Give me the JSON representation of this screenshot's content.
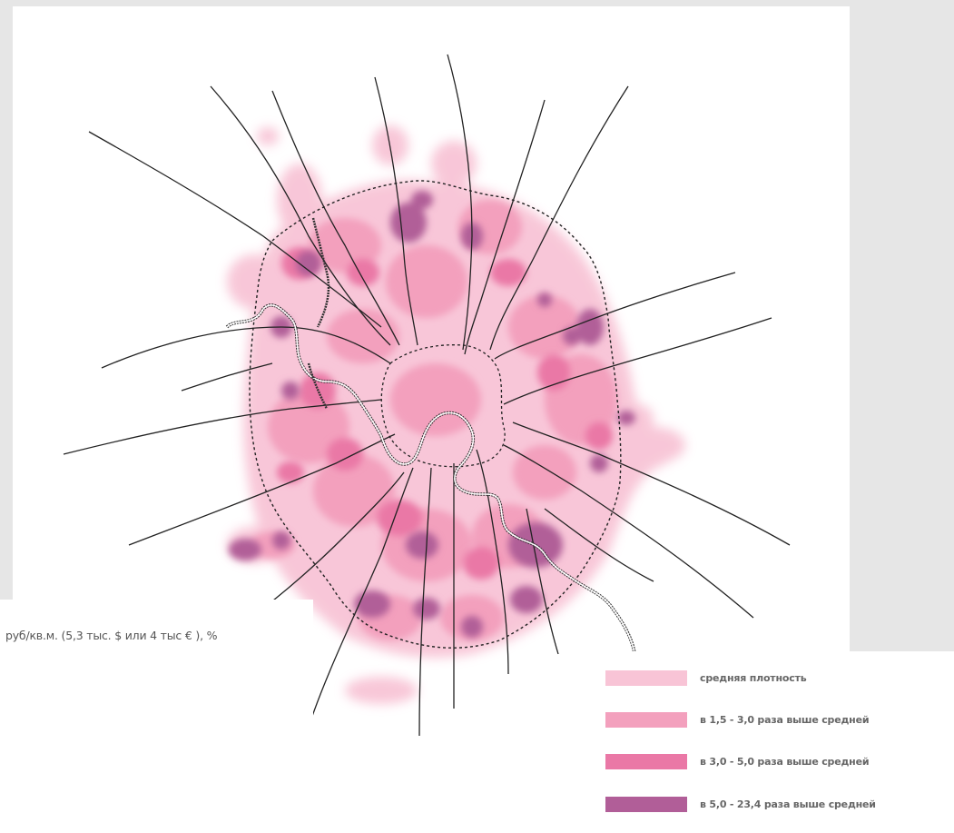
{
  "caption": "руб/кв.м. (5,3 тыс. $ или 4 тыс € ), %",
  "legend": [
    {
      "label": "средняя плотность",
      "color": "#f8c4d6"
    },
    {
      "label": "в 1,5 - 3,0 раза выше средней",
      "color": "#f3a0bd"
    },
    {
      "label": "в 3,0 - 5,0 раза выше средней",
      "color": "#ea78a6"
    },
    {
      "label": "в 5,0 - 23,4 раза выше средней",
      "color": "#b15e98"
    }
  ],
  "colors": {
    "background": "#e6e6e6",
    "panel": "#ffffff",
    "roads": "#222222",
    "boundary": "#222222"
  },
  "icons": [
    "roads-network",
    "river",
    "mkad-ring",
    "third-ring",
    "density-blobs"
  ]
}
